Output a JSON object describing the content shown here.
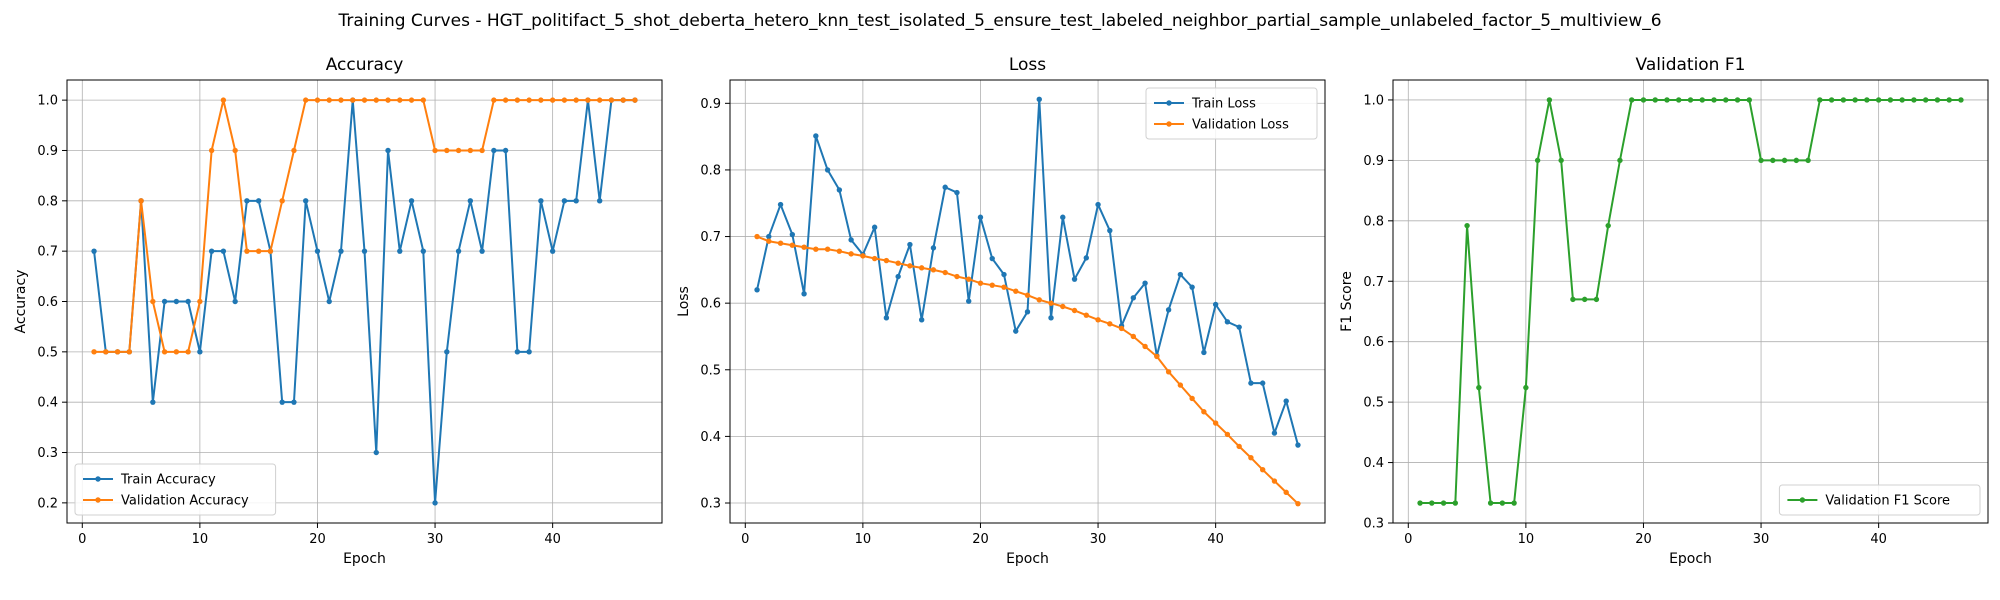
{
  "suptitle": "Training Curves - HGT_politifact_5_shot_deberta_hetero_knn_test_isolated_5_ensure_test_labeled_neighbor_partial_sample_unlabeled_factor_5_multiview_6",
  "chart_data": [
    {
      "type": "line",
      "title": "Accuracy",
      "xlabel": "Epoch",
      "ylabel": "Accuracy",
      "xlim": [
        -1.3,
        49.3
      ],
      "ylim": [
        0.16,
        1.04
      ],
      "xticks": [
        0,
        10,
        20,
        30,
        40
      ],
      "yticks": [
        0.2,
        0.3,
        0.4,
        0.5,
        0.6,
        0.7,
        0.8,
        0.9,
        1.0
      ],
      "ytick_decimals": 1,
      "grid": true,
      "legend_position": "lower-left",
      "x": [
        1,
        2,
        3,
        4,
        5,
        6,
        7,
        8,
        9,
        10,
        11,
        12,
        13,
        14,
        15,
        16,
        17,
        18,
        19,
        20,
        21,
        22,
        23,
        24,
        25,
        26,
        27,
        28,
        29,
        30,
        31,
        32,
        33,
        34,
        35,
        36,
        37,
        38,
        39,
        40,
        41,
        42,
        43,
        44,
        45,
        46,
        47
      ],
      "series": [
        {
          "name": "Train Accuracy",
          "color": "#1f77b4",
          "values": [
            0.7,
            0.5,
            0.5,
            0.5,
            0.8,
            0.4,
            0.6,
            0.6,
            0.6,
            0.5,
            0.7,
            0.7,
            0.6,
            0.8,
            0.8,
            0.7,
            0.4,
            0.4,
            0.8,
            0.7,
            0.6,
            0.7,
            1.0,
            0.7,
            0.3,
            0.9,
            0.7,
            0.8,
            0.7,
            0.2,
            0.5,
            0.7,
            0.8,
            0.7,
            0.9,
            0.9,
            0.5,
            0.5,
            0.8,
            0.7,
            0.8,
            0.8,
            1.0,
            0.8,
            1.0,
            1.0,
            1.0
          ]
        },
        {
          "name": "Validation Accuracy",
          "color": "#ff7f0e",
          "values": [
            0.5,
            0.5,
            0.5,
            0.5,
            0.8,
            0.6,
            0.5,
            0.5,
            0.5,
            0.6,
            0.9,
            1.0,
            0.9,
            0.7,
            0.7,
            0.7,
            0.8,
            0.9,
            1.0,
            1.0,
            1.0,
            1.0,
            1.0,
            1.0,
            1.0,
            1.0,
            1.0,
            1.0,
            1.0,
            0.9,
            0.9,
            0.9,
            0.9,
            0.9,
            1.0,
            1.0,
            1.0,
            1.0,
            1.0,
            1.0,
            1.0,
            1.0,
            1.0,
            1.0,
            1.0,
            1.0,
            1.0
          ]
        }
      ]
    },
    {
      "type": "line",
      "title": "Loss",
      "xlabel": "Epoch",
      "ylabel": "Loss",
      "xlim": [
        -1.3,
        49.3
      ],
      "ylim": [
        0.27,
        0.935
      ],
      "xticks": [
        0,
        10,
        20,
        30,
        40
      ],
      "yticks": [
        0.3,
        0.4,
        0.5,
        0.6,
        0.7,
        0.8,
        0.9
      ],
      "ytick_decimals": 1,
      "grid": true,
      "legend_position": "upper-right",
      "x": [
        1,
        2,
        3,
        4,
        5,
        6,
        7,
        8,
        9,
        10,
        11,
        12,
        13,
        14,
        15,
        16,
        17,
        18,
        19,
        20,
        21,
        22,
        23,
        24,
        25,
        26,
        27,
        28,
        29,
        30,
        31,
        32,
        33,
        34,
        35,
        36,
        37,
        38,
        39,
        40,
        41,
        42,
        43,
        44,
        45,
        46,
        47
      ],
      "series": [
        {
          "name": "Train Loss",
          "color": "#1f77b4",
          "values": [
            0.62,
            0.7,
            0.748,
            0.703,
            0.614,
            0.851,
            0.8,
            0.77,
            0.695,
            0.673,
            0.714,
            0.578,
            0.64,
            0.688,
            0.575,
            0.683,
            0.774,
            0.766,
            0.603,
            0.729,
            0.667,
            0.643,
            0.558,
            0.587,
            0.906,
            0.578,
            0.729,
            0.636,
            0.668,
            0.748,
            0.709,
            0.566,
            0.608,
            0.63,
            0.521,
            0.59,
            0.643,
            0.624,
            0.526,
            0.598,
            0.572,
            0.564,
            0.48,
            0.48,
            0.405,
            0.453,
            0.387
          ]
        },
        {
          "name": "Validation Loss",
          "color": "#ff7f0e",
          "values": [
            0.7,
            0.693,
            0.69,
            0.687,
            0.684,
            0.681,
            0.681,
            0.678,
            0.674,
            0.671,
            0.667,
            0.664,
            0.66,
            0.656,
            0.653,
            0.65,
            0.646,
            0.64,
            0.636,
            0.63,
            0.627,
            0.624,
            0.618,
            0.612,
            0.605,
            0.6,
            0.595,
            0.589,
            0.582,
            0.575,
            0.569,
            0.562,
            0.55,
            0.535,
            0.52,
            0.497,
            0.477,
            0.457,
            0.437,
            0.42,
            0.403,
            0.385,
            0.368,
            0.35,
            0.333,
            0.316,
            0.299
          ]
        }
      ]
    },
    {
      "type": "line",
      "title": "Validation F1",
      "xlabel": "Epoch",
      "ylabel": "F1 Score",
      "xlim": [
        -1.3,
        49.3
      ],
      "ylim": [
        0.3,
        1.033
      ],
      "xticks": [
        0,
        10,
        20,
        30,
        40
      ],
      "yticks": [
        0.3,
        0.4,
        0.5,
        0.6,
        0.7,
        0.8,
        0.9,
        1.0
      ],
      "ytick_decimals": 1,
      "grid": true,
      "legend_position": "lower-right",
      "x": [
        1,
        2,
        3,
        4,
        5,
        6,
        7,
        8,
        9,
        10,
        11,
        12,
        13,
        14,
        15,
        16,
        17,
        18,
        19,
        20,
        21,
        22,
        23,
        24,
        25,
        26,
        27,
        28,
        29,
        30,
        31,
        32,
        33,
        34,
        35,
        36,
        37,
        38,
        39,
        40,
        41,
        42,
        43,
        44,
        45,
        46,
        47
      ],
      "series": [
        {
          "name": "Validation F1 Score",
          "color": "#2ca02c",
          "values": [
            0.333,
            0.333,
            0.333,
            0.333,
            0.792,
            0.524,
            0.333,
            0.333,
            0.333,
            0.524,
            0.9,
            1.0,
            0.9,
            0.67,
            0.67,
            0.67,
            0.792,
            0.9,
            1.0,
            1.0,
            1.0,
            1.0,
            1.0,
            1.0,
            1.0,
            1.0,
            1.0,
            1.0,
            1.0,
            0.9,
            0.9,
            0.9,
            0.9,
            0.9,
            1.0,
            1.0,
            1.0,
            1.0,
            1.0,
            1.0,
            1.0,
            1.0,
            1.0,
            1.0,
            1.0,
            1.0,
            1.0
          ]
        }
      ]
    }
  ]
}
